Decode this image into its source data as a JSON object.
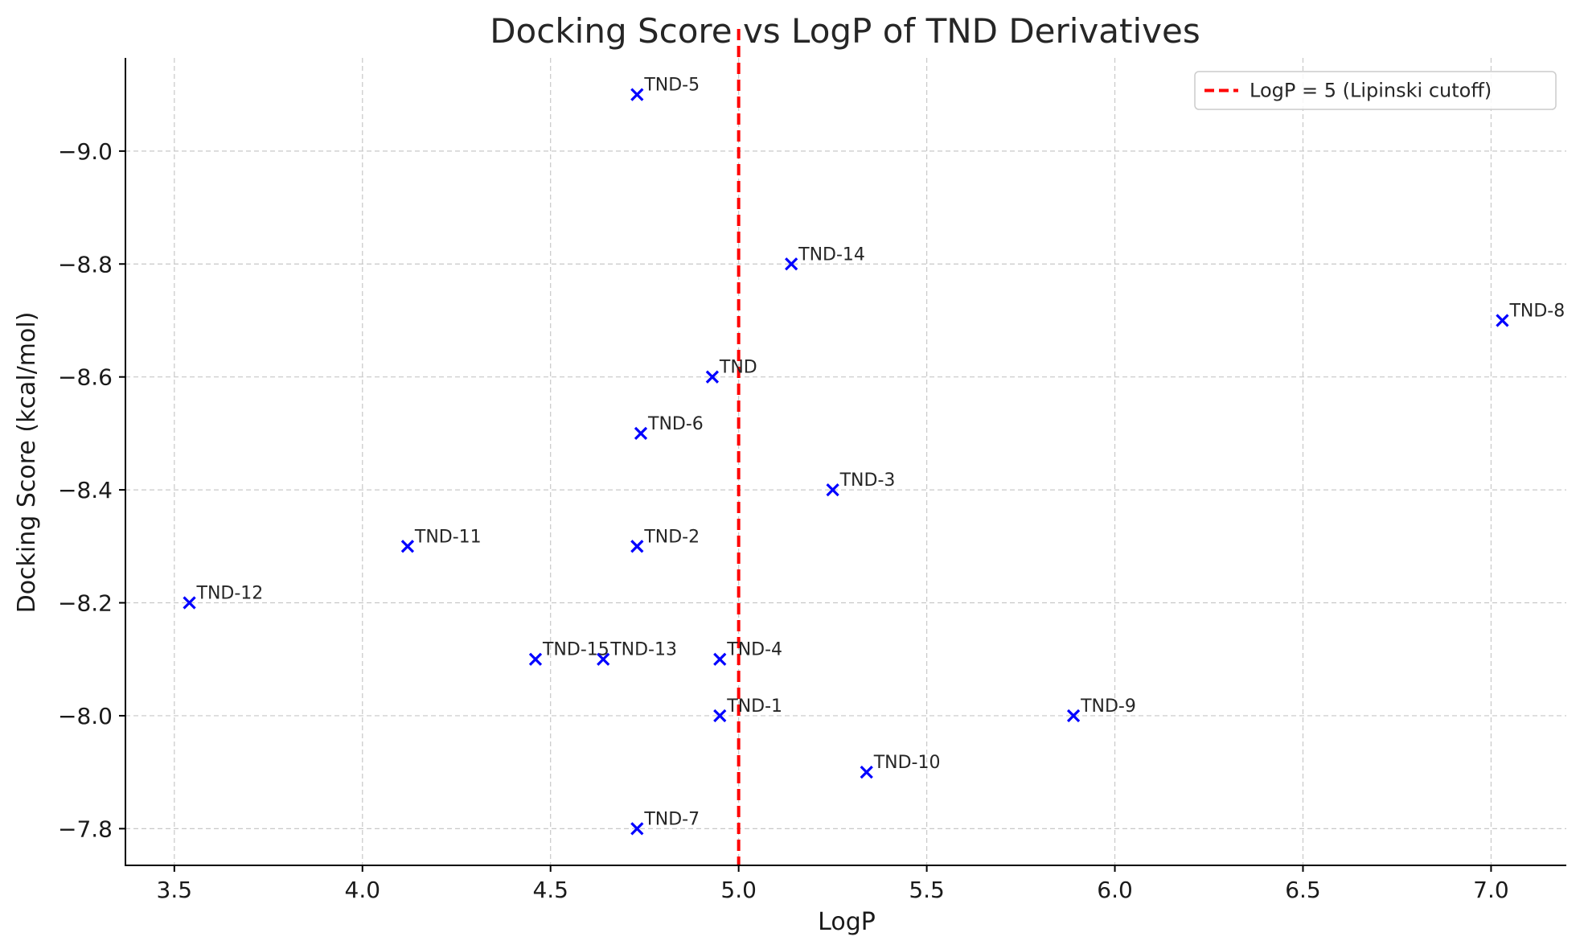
{
  "chart_data": {
    "type": "scatter",
    "title": "Docking Score vs LogP of TND Derivatives",
    "xlabel": "LogP",
    "ylabel": "Docking Score (kcal/mol)",
    "xlim": [
      3.37,
      7.2
    ],
    "ylim": [
      -7.735,
      -9.165
    ],
    "x_ticks": [
      3.5,
      4.0,
      4.5,
      5.0,
      5.5,
      6.0,
      6.5,
      7.0
    ],
    "x_tick_labels": [
      "3.5",
      "4.0",
      "4.5",
      "5.0",
      "5.5",
      "6.0",
      "6.5",
      "7.0"
    ],
    "y_ticks": [
      -9.0,
      -8.8,
      -8.6,
      -8.4,
      -8.2,
      -8.0,
      -7.8
    ],
    "y_tick_labels": [
      "−9.0",
      "−8.8",
      "−8.6",
      "−8.4",
      "−8.2",
      "−8.0",
      "−7.8"
    ],
    "grid": true,
    "marker_color": "#0000ff",
    "reference_line_color": "#ff0000",
    "series": [
      {
        "points": [
          {
            "label": "TND",
            "x": 4.93,
            "y": -8.6
          },
          {
            "label": "TND-1",
            "x": 4.95,
            "y": -8.0
          },
          {
            "label": "TND-2",
            "x": 4.73,
            "y": -8.3
          },
          {
            "label": "TND-3",
            "x": 5.25,
            "y": -8.4
          },
          {
            "label": "TND-4",
            "x": 4.95,
            "y": -8.1
          },
          {
            "label": "TND-5",
            "x": 4.73,
            "y": -9.1
          },
          {
            "label": "TND-6",
            "x": 4.74,
            "y": -8.5
          },
          {
            "label": "TND-7",
            "x": 4.73,
            "y": -7.8
          },
          {
            "label": "TND-8",
            "x": 7.03,
            "y": -8.7
          },
          {
            "label": "TND-9",
            "x": 5.89,
            "y": -8.0
          },
          {
            "label": "TND-10",
            "x": 5.34,
            "y": -7.9
          },
          {
            "label": "TND-11",
            "x": 4.12,
            "y": -8.3
          },
          {
            "label": "TND-12",
            "x": 3.54,
            "y": -8.2
          },
          {
            "label": "TND-13",
            "x": 4.64,
            "y": -8.1
          },
          {
            "label": "TND-14",
            "x": 5.14,
            "y": -8.8
          },
          {
            "label": "TND-15",
            "x": 4.46,
            "y": -8.1
          }
        ]
      }
    ],
    "reference_line": {
      "axis": "x",
      "value": 5.0,
      "style": "dashed",
      "label": "LogP = 5 (Lipinski cutoff)"
    },
    "legend": {
      "position": "top-right"
    }
  }
}
